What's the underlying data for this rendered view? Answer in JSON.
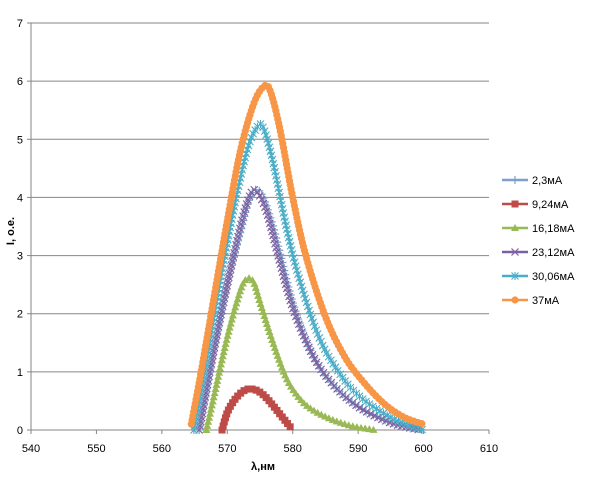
{
  "chart_data": {
    "type": "scatter",
    "xlabel": "λ,нм",
    "ylabel": "I, о.е.",
    "xlim": [
      540,
      610
    ],
    "ylim": [
      0,
      7
    ],
    "xticks": [
      "540",
      "550",
      "560",
      "570",
      "580",
      "590",
      "600",
      "610"
    ],
    "yticks": [
      "0",
      "1",
      "2",
      "3",
      "4",
      "5",
      "6",
      "7"
    ],
    "grid": "horizontal",
    "legend_position": "right",
    "series": [
      {
        "name": "2,3мА",
        "color": "#7f9ec9",
        "marker": "plus",
        "x": [
          565.7,
          568,
          570,
          572,
          573.5,
          575,
          577,
          580,
          583,
          586,
          590,
          595,
          600
        ],
        "y": [
          0,
          1.4,
          2.5,
          3.4,
          4.0,
          4.1,
          3.5,
          2.2,
          1.3,
          0.8,
          0.4,
          0.13,
          0
        ]
      },
      {
        "name": "9,24мА",
        "color": "#be4b48",
        "marker": "square",
        "x": [
          569.2,
          570,
          571,
          572,
          573,
          574,
          575,
          576,
          577,
          578,
          579,
          580
        ],
        "y": [
          0,
          0.3,
          0.5,
          0.63,
          0.7,
          0.7,
          0.65,
          0.55,
          0.42,
          0.28,
          0.14,
          0
        ]
      },
      {
        "name": "16,18мА",
        "color": "#98b954",
        "marker": "triangle",
        "x": [
          566.8,
          568,
          570,
          572,
          573,
          574,
          575,
          577,
          579,
          581,
          583,
          586,
          589,
          592.5
        ],
        "y": [
          0,
          0.6,
          1.6,
          2.4,
          2.6,
          2.55,
          2.2,
          1.5,
          0.9,
          0.55,
          0.35,
          0.18,
          0.07,
          0
        ]
      },
      {
        "name": "23,12мА",
        "color": "#7d60a0",
        "marker": "x",
        "x": [
          565.7,
          568,
          570,
          572,
          573.5,
          574.5,
          576,
          578,
          580,
          583,
          586,
          590,
          595,
          599.5
        ],
        "y": [
          0,
          1.4,
          2.5,
          3.5,
          4.05,
          4.1,
          3.75,
          2.9,
          2.1,
          1.3,
          0.8,
          0.4,
          0.12,
          0
        ]
      },
      {
        "name": "30,06мА",
        "color": "#4aacc6",
        "marker": "asterisk",
        "x": [
          564.9,
          567,
          569,
          571,
          573,
          574.5,
          575.5,
          577,
          579,
          581,
          584,
          587,
          590,
          594,
          598,
          600
        ],
        "y": [
          0,
          1.3,
          2.6,
          3.8,
          4.8,
          5.2,
          5.2,
          4.6,
          3.5,
          2.6,
          1.6,
          1.0,
          0.6,
          0.28,
          0.07,
          0
        ]
      },
      {
        "name": "37мА",
        "color": "#f79646",
        "marker": "circle",
        "x": [
          564.5,
          566,
          568,
          570,
          572,
          574,
          575.5,
          576.5,
          578,
          580,
          582,
          585,
          588,
          591,
          594,
          597,
          600
        ],
        "y": [
          0.1,
          1.0,
          2.3,
          3.6,
          4.8,
          5.6,
          5.9,
          5.85,
          5.2,
          4.0,
          3.0,
          1.95,
          1.25,
          0.8,
          0.45,
          0.22,
          0.1
        ]
      }
    ]
  }
}
